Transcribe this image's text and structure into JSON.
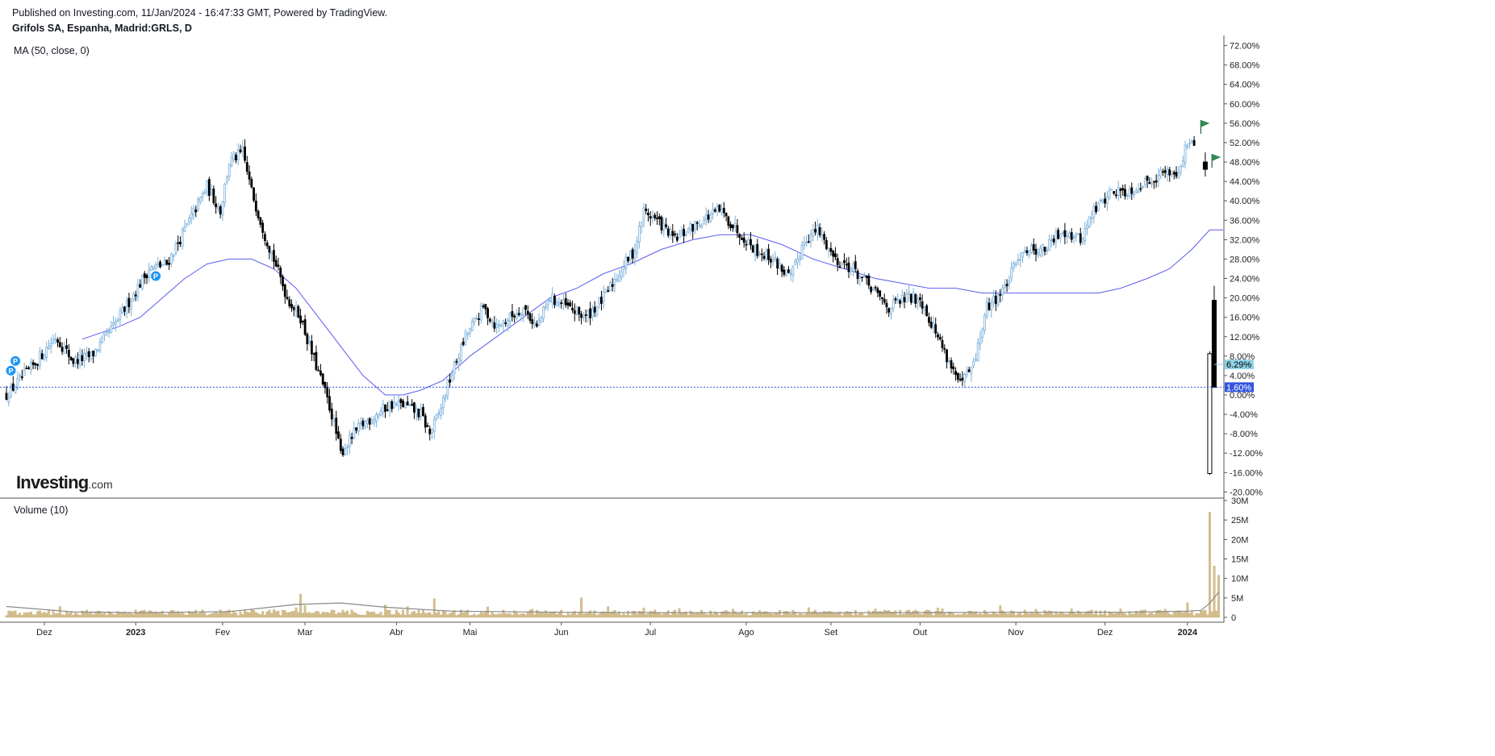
{
  "header": {
    "published": "Published on Investing.com, 11/Jan/2024 - 16:47:33 GMT, Powered by TradingView.",
    "symbol": "Grifols SA, Espanha, Madrid:GRLS, D"
  },
  "logo": {
    "brand": "Investing",
    "suffix": ".com"
  },
  "colors": {
    "up_candle": "#7ab0dc",
    "down_candle": "#000000",
    "ma_line": "#5a5cf0",
    "volume_bar": "#d6c08e",
    "volume_ma": "#888888",
    "last_price_badge": "#8fd3e6",
    "reference_badge": "#3355dd",
    "flag": "#2e8b57",
    "marker": "#2196f3"
  },
  "markers": {
    "p_label": "P"
  },
  "chart_data": [
    {
      "type": "candlestick",
      "title": "Grifols SA, Espanha, Madrid:GRLS, D",
      "indicator": "MA (50, close, 0)",
      "y_unit": "%",
      "ylim": [
        -22,
        74
      ],
      "y_ticks": [
        "72.00%",
        "68.00%",
        "64.00%",
        "60.00%",
        "56.00%",
        "52.00%",
        "48.00%",
        "44.00%",
        "40.00%",
        "36.00%",
        "32.00%",
        "28.00%",
        "24.00%",
        "20.00%",
        "16.00%",
        "12.00%",
        "8.00%",
        "4.00%",
        "0.00%",
        "-4.00%",
        "-8.00%",
        "-12.00%",
        "-16.00%",
        "-20.00%"
      ],
      "y_tick_values": [
        72,
        68,
        64,
        60,
        56,
        52,
        48,
        44,
        40,
        36,
        32,
        28,
        24,
        20,
        16,
        12,
        8,
        4,
        0,
        -4,
        -8,
        -12,
        -16,
        -20
      ],
      "last_value_label": "6.29%",
      "last_value": 6.29,
      "reference_label": "1.60%",
      "reference_value": 1.6,
      "x_labels": [
        "Dez",
        "2023",
        "Fev",
        "Mar",
        "Abr",
        "Mai",
        "Jun",
        "Jul",
        "Ago",
        "Set",
        "Out",
        "Nov",
        "Dez",
        "2024"
      ],
      "x_label_bold": [
        "2023",
        "2024"
      ],
      "anchors": [
        [
          0,
          0
        ],
        [
          12,
          6
        ],
        [
          22,
          12
        ],
        [
          30,
          7
        ],
        [
          38,
          8
        ],
        [
          48,
          14
        ],
        [
          56,
          20
        ],
        [
          64,
          26
        ],
        [
          72,
          27
        ],
        [
          80,
          34
        ],
        [
          90,
          43
        ],
        [
          96,
          38
        ],
        [
          100,
          48
        ],
        [
          106,
          50
        ],
        [
          110,
          42
        ],
        [
          116,
          33
        ],
        [
          120,
          28
        ],
        [
          126,
          20
        ],
        [
          132,
          16
        ],
        [
          136,
          10
        ],
        [
          142,
          2
        ],
        [
          146,
          -4
        ],
        [
          150,
          -12
        ],
        [
          156,
          -8
        ],
        [
          160,
          -6
        ],
        [
          166,
          -4
        ],
        [
          172,
          -2
        ],
        [
          178,
          -2
        ],
        [
          186,
          -4
        ],
        [
          190,
          -8
        ],
        [
          194,
          -4
        ],
        [
          198,
          2
        ],
        [
          206,
          12
        ],
        [
          214,
          18
        ],
        [
          220,
          14
        ],
        [
          226,
          16
        ],
        [
          232,
          18
        ],
        [
          238,
          14
        ],
        [
          244,
          20
        ],
        [
          252,
          18
        ],
        [
          260,
          16
        ],
        [
          268,
          20
        ],
        [
          276,
          26
        ],
        [
          282,
          30
        ],
        [
          286,
          38
        ],
        [
          292,
          36
        ],
        [
          300,
          32
        ],
        [
          306,
          34
        ],
        [
          312,
          36
        ],
        [
          320,
          38
        ],
        [
          328,
          34
        ],
        [
          336,
          30
        ],
        [
          344,
          28
        ],
        [
          352,
          24
        ],
        [
          358,
          32
        ],
        [
          364,
          34
        ],
        [
          372,
          28
        ],
        [
          380,
          26
        ],
        [
          388,
          22
        ],
        [
          396,
          18
        ],
        [
          404,
          20
        ],
        [
          410,
          20
        ],
        [
          420,
          10
        ],
        [
          428,
          2
        ],
        [
          434,
          6
        ],
        [
          440,
          18
        ],
        [
          448,
          22
        ],
        [
          456,
          30
        ],
        [
          466,
          30
        ],
        [
          474,
          34
        ],
        [
          482,
          32
        ],
        [
          488,
          38
        ],
        [
          496,
          42
        ],
        [
          504,
          42
        ],
        [
          512,
          44
        ],
        [
          520,
          46
        ],
        [
          526,
          46
        ],
        [
          530,
          52
        ],
        [
          536,
          50
        ],
        [
          542,
          48
        ]
      ],
      "ma50": [
        [
          34,
          11.5
        ],
        [
          50,
          14
        ],
        [
          60,
          16
        ],
        [
          70,
          20
        ],
        [
          80,
          24
        ],
        [
          90,
          27
        ],
        [
          100,
          28
        ],
        [
          110,
          28
        ],
        [
          120,
          26
        ],
        [
          130,
          22
        ],
        [
          140,
          16
        ],
        [
          150,
          10
        ],
        [
          160,
          4
        ],
        [
          170,
          0
        ],
        [
          178,
          0
        ],
        [
          186,
          1
        ],
        [
          196,
          3
        ],
        [
          208,
          8
        ],
        [
          220,
          12
        ],
        [
          232,
          16
        ],
        [
          244,
          20
        ],
        [
          256,
          22
        ],
        [
          268,
          25
        ],
        [
          280,
          27
        ],
        [
          294,
          30
        ],
        [
          308,
          32
        ],
        [
          320,
          33
        ],
        [
          334,
          33
        ],
        [
          348,
          31
        ],
        [
          362,
          28
        ],
        [
          376,
          26
        ],
        [
          390,
          24
        ],
        [
          402,
          23
        ],
        [
          414,
          22
        ],
        [
          426,
          22
        ],
        [
          438,
          21
        ],
        [
          452,
          21
        ],
        [
          466,
          21
        ],
        [
          478,
          21
        ],
        [
          490,
          21
        ],
        [
          500,
          22
        ],
        [
          512,
          24
        ],
        [
          522,
          26
        ],
        [
          532,
          30
        ],
        [
          540,
          34
        ],
        [
          546,
          34
        ]
      ]
    },
    {
      "type": "bar",
      "title": "Volume (10)",
      "ylim": [
        0,
        30000000
      ],
      "y_ticks": [
        "30M",
        "25M",
        "20M",
        "15M",
        "10M",
        "5M",
        "0"
      ],
      "y_tick_values": [
        30000000,
        25000000,
        20000000,
        15000000,
        10000000,
        5000000,
        0
      ],
      "typical_volume": 1200000,
      "spikes": [
        [
          24,
          2800000
        ],
        [
          120,
          2000000
        ],
        [
          130,
          2500000
        ],
        [
          132,
          6000000
        ],
        [
          134,
          3000000
        ],
        [
          170,
          3200000
        ],
        [
          180,
          2800000
        ],
        [
          192,
          4800000
        ],
        [
          216,
          2700000
        ],
        [
          236,
          2100000
        ],
        [
          258,
          5000000
        ],
        [
          270,
          2800000
        ],
        [
          286,
          2400000
        ],
        [
          302,
          2300000
        ],
        [
          326,
          2100000
        ],
        [
          360,
          2500000
        ],
        [
          390,
          2200000
        ],
        [
          418,
          2400000
        ],
        [
          420,
          2200000
        ],
        [
          446,
          3000000
        ],
        [
          462,
          2100000
        ],
        [
          478,
          2200000
        ],
        [
          500,
          2200000
        ],
        [
          520,
          2100000
        ],
        [
          530,
          3800000
        ],
        [
          540,
          27000000
        ],
        [
          542,
          13200000
        ],
        [
          544,
          10800000
        ]
      ],
      "volume_ma": [
        [
          0,
          2800000
        ],
        [
          30,
          1400000
        ],
        [
          60,
          1200000
        ],
        [
          100,
          1500000
        ],
        [
          130,
          3300000
        ],
        [
          150,
          3700000
        ],
        [
          170,
          2600000
        ],
        [
          200,
          1600000
        ],
        [
          250,
          1300000
        ],
        [
          300,
          1200000
        ],
        [
          350,
          1200000
        ],
        [
          400,
          1200000
        ],
        [
          450,
          1300000
        ],
        [
          500,
          1300000
        ],
        [
          530,
          1600000
        ],
        [
          536,
          1800000
        ],
        [
          540,
          3600000
        ],
        [
          544,
          6500000
        ]
      ]
    }
  ]
}
